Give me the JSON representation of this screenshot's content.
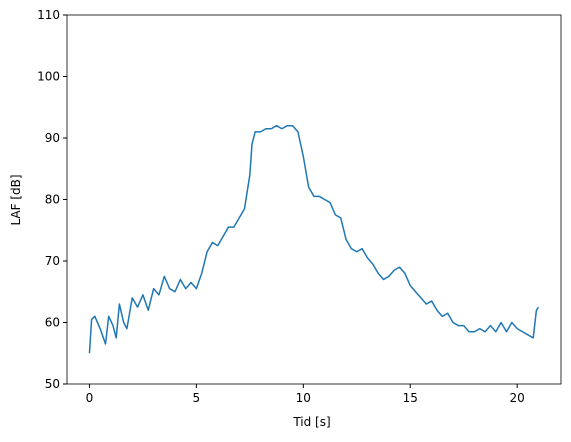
{
  "chart_data": {
    "type": "line",
    "xlabel": "Tid [s]",
    "ylabel": "LAF [dB]",
    "x": [
      0,
      0.1,
      0.25,
      0.5,
      0.75,
      0.9,
      1.1,
      1.25,
      1.4,
      1.6,
      1.75,
      2.0,
      2.25,
      2.5,
      2.75,
      3.0,
      3.25,
      3.5,
      3.75,
      4.0,
      4.25,
      4.5,
      4.75,
      5.0,
      5.25,
      5.5,
      5.75,
      6.0,
      6.25,
      6.5,
      6.75,
      7.0,
      7.25,
      7.5,
      7.6,
      7.75,
      8.0,
      8.25,
      8.5,
      8.75,
      9.0,
      9.25,
      9.5,
      9.75,
      10.0,
      10.25,
      10.5,
      10.75,
      11.0,
      11.25,
      11.5,
      11.75,
      12.0,
      12.25,
      12.5,
      12.75,
      13.0,
      13.25,
      13.5,
      13.75,
      14.0,
      14.25,
      14.5,
      14.75,
      15.0,
      15.25,
      15.5,
      15.75,
      16.0,
      16.25,
      16.5,
      16.75,
      17.0,
      17.25,
      17.5,
      17.75,
      18.0,
      18.25,
      18.5,
      18.75,
      19.0,
      19.25,
      19.5,
      19.75,
      20.0,
      20.25,
      20.5,
      20.75,
      20.9,
      21.0
    ],
    "series": [
      {
        "color": "#1f77b4",
        "values": [
          55,
          60.5,
          61,
          59,
          56.5,
          61,
          59.5,
          57.5,
          63,
          60,
          59,
          64,
          62.5,
          64.5,
          62,
          65.5,
          64.5,
          67.5,
          65.5,
          65,
          67,
          65.5,
          66.5,
          65.5,
          68,
          71.5,
          73,
          72.5,
          74,
          75.5,
          75.5,
          77,
          78.5,
          84,
          89,
          91,
          91,
          91.5,
          91.5,
          92,
          91.5,
          92,
          92,
          91,
          87,
          82,
          80.5,
          80.5,
          80,
          79.5,
          77.5,
          77,
          73.5,
          72,
          71.5,
          72,
          70.5,
          69.5,
          68,
          67,
          67.5,
          68.5,
          69,
          68,
          66,
          65,
          64,
          63,
          63.5,
          62,
          61,
          61.5,
          60,
          59.5,
          59.5,
          58.5,
          58.5,
          59,
          58.5,
          59.5,
          58.5,
          60,
          58.5,
          60,
          59,
          58.5,
          58,
          57.5,
          62,
          62.5
        ]
      }
    ],
    "xlim": [
      -1.05,
      22.05
    ],
    "xticks": [
      0,
      5,
      10,
      15,
      20
    ],
    "ylim": [
      50,
      110
    ],
    "yticks": [
      50,
      60,
      70,
      80,
      90,
      100,
      110
    ]
  }
}
